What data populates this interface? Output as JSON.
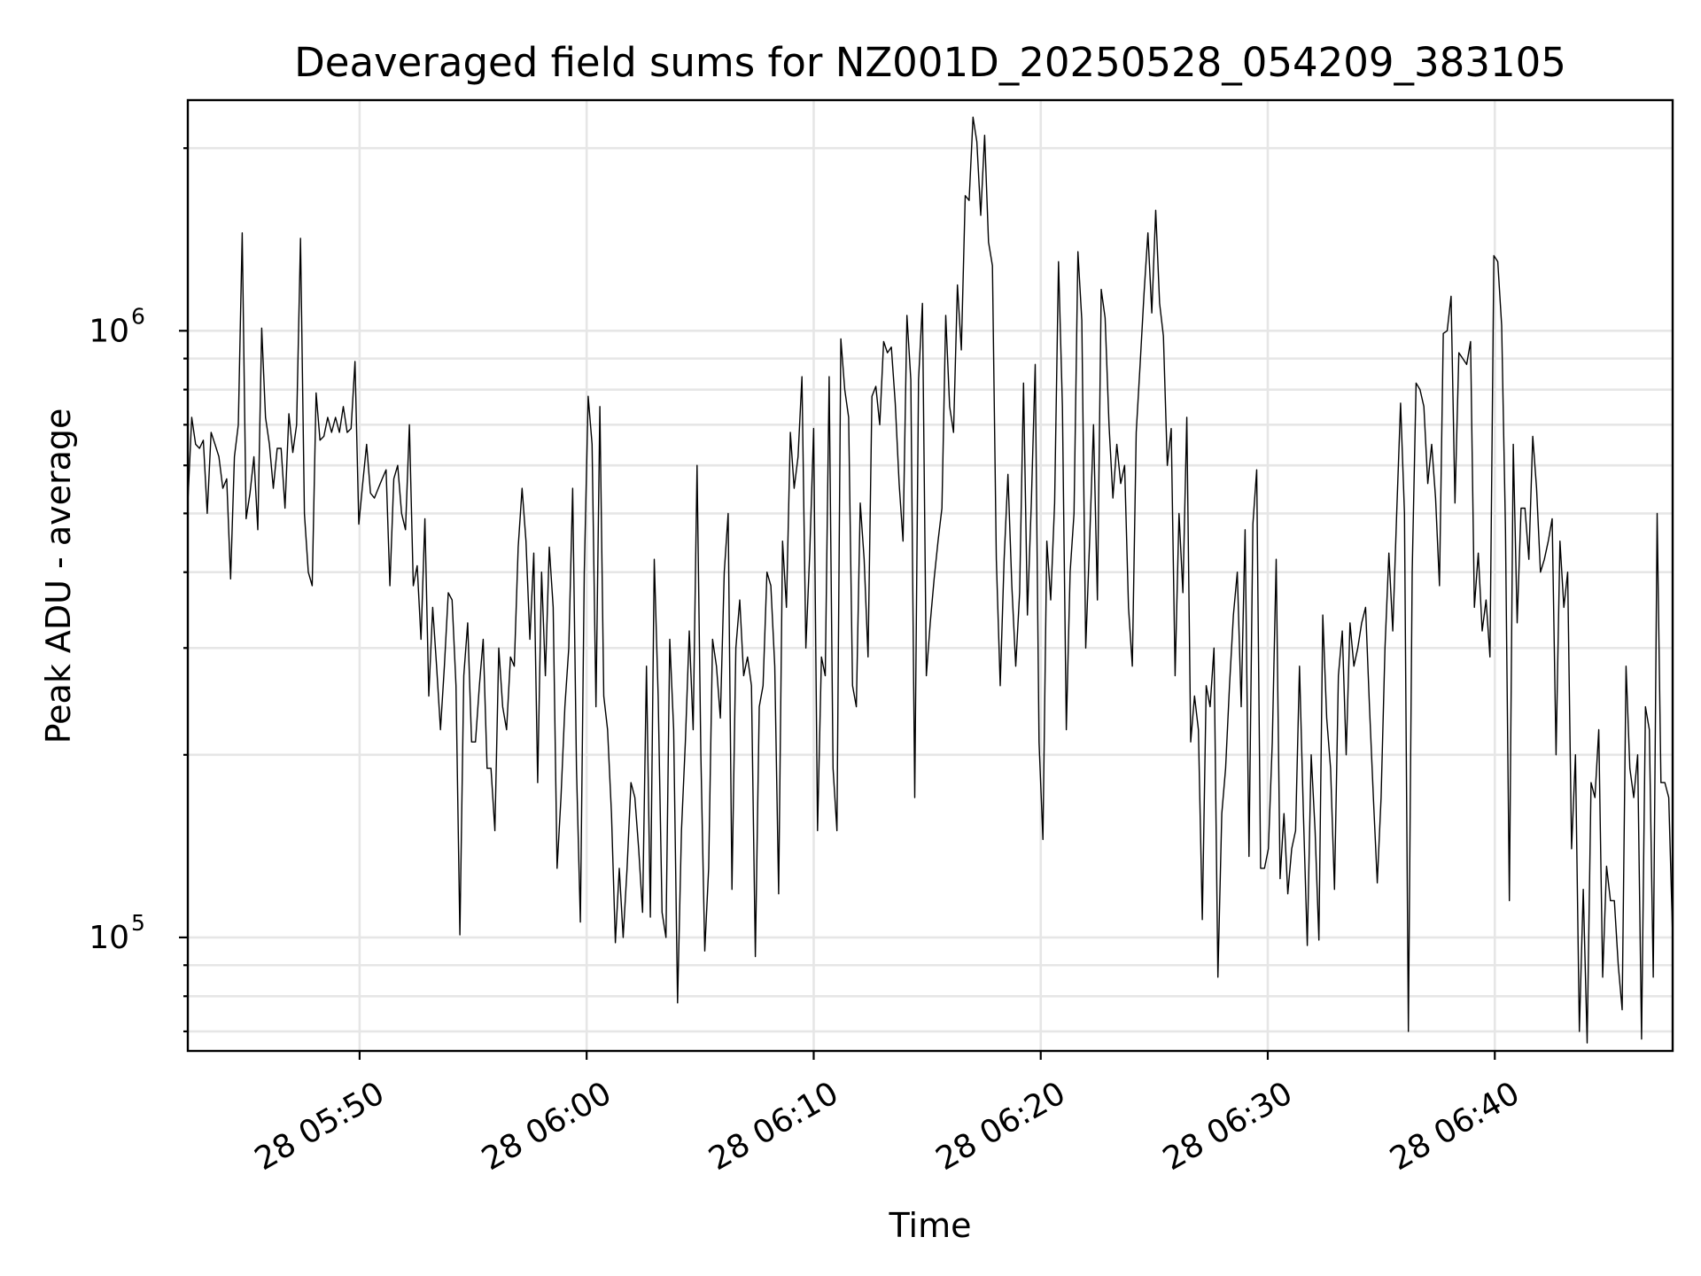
{
  "chart_data": {
    "type": "line",
    "title": "Deaveraged field sums for NZ001D_20250528_054209_383105",
    "xlabel": "Time",
    "ylabel": "Peak ADU - average",
    "yscale": "log",
    "xlim": [
      "2025-05-28T05:42:26",
      "2025-05-28T06:47:50"
    ],
    "ylim": [
      65000,
      2400000
    ],
    "grid": true,
    "x_ticks": [
      {
        "t": "2025-05-28T05:50:00",
        "label": "28 05:50"
      },
      {
        "t": "2025-05-28T06:00:00",
        "label": "28 06:00"
      },
      {
        "t": "2025-05-28T06:10:00",
        "label": "28 06:10"
      },
      {
        "t": "2025-05-28T06:20:00",
        "label": "28 06:20"
      },
      {
        "t": "2025-05-28T06:30:00",
        "label": "28 06:30"
      },
      {
        "t": "2025-05-28T06:40:00",
        "label": "28 06:40"
      }
    ],
    "y_ticks": [
      {
        "value": 100000,
        "base": "10",
        "exp": "5"
      },
      {
        "value": 1000000,
        "base": "10",
        "exp": "6"
      }
    ],
    "series": [
      {
        "color": "#000000",
        "t_start": "2025-05-28T05:42:26",
        "t_end": "2025-05-28T06:47:50",
        "values": [
          520000,
          720000,
          650000,
          640000,
          660000,
          500000,
          680000,
          650000,
          620000,
          550000,
          570000,
          390000,
          620000,
          700000,
          1450000,
          490000,
          540000,
          620000,
          470000,
          1010000,
          720000,
          650000,
          550000,
          640000,
          640000,
          510000,
          730000,
          630000,
          700000,
          1420000,
          500000,
          400000,
          380000,
          790000,
          660000,
          670000,
          720000,
          680000,
          720000,
          680000,
          750000,
          680000,
          690000,
          890000,
          480000,
          560000,
          650000,
          540000,
          530000,
          550000,
          570000,
          590000,
          380000,
          570000,
          600000,
          500000,
          470000,
          700000,
          380000,
          410000,
          310000,
          490000,
          250000,
          350000,
          280000,
          220000,
          280000,
          370000,
          360000,
          260000,
          101000,
          270000,
          330000,
          210000,
          210000,
          260000,
          310000,
          190000,
          190000,
          150000,
          300000,
          240000,
          220000,
          290000,
          280000,
          440000,
          550000,
          450000,
          310000,
          430000,
          180000,
          400000,
          270000,
          440000,
          350000,
          130000,
          170000,
          240000,
          300000,
          550000,
          190000,
          106000,
          400000,
          780000,
          650000,
          240000,
          750000,
          250000,
          220000,
          160000,
          98000,
          130000,
          100000,
          130000,
          180000,
          170000,
          140000,
          110000,
          280000,
          108000,
          420000,
          250000,
          110000,
          100000,
          310000,
          220000,
          78000,
          150000,
          210000,
          320000,
          220000,
          600000,
          200000,
          95000,
          130000,
          310000,
          280000,
          230000,
          400000,
          500000,
          120000,
          300000,
          360000,
          270000,
          290000,
          260000,
          93000,
          240000,
          260000,
          400000,
          380000,
          280000,
          118000,
          450000,
          350000,
          680000,
          550000,
          620000,
          840000,
          300000,
          430000,
          690000,
          150000,
          290000,
          270000,
          840000,
          190000,
          150000,
          970000,
          800000,
          720000,
          260000,
          240000,
          520000,
          420000,
          290000,
          780000,
          810000,
          700000,
          960000,
          920000,
          940000,
          760000,
          560000,
          450000,
          1060000,
          830000,
          170000,
          830000,
          1110000,
          270000,
          330000,
          390000,
          450000,
          510000,
          1060000,
          750000,
          680000,
          1190000,
          930000,
          1670000,
          1640000,
          2250000,
          2050000,
          1550000,
          2100000,
          1400000,
          1280000,
          420000,
          260000,
          420000,
          580000,
          380000,
          280000,
          370000,
          820000,
          340000,
          520000,
          880000,
          210000,
          145000,
          450000,
          360000,
          520000,
          1300000,
          750000,
          220000,
          400000,
          500000,
          1350000,
          1040000,
          300000,
          450000,
          700000,
          360000,
          1170000,
          1050000,
          700000,
          530000,
          650000,
          560000,
          600000,
          350000,
          280000,
          680000,
          880000,
          1150000,
          1450000,
          1070000,
          1580000,
          1110000,
          980000,
          600000,
          690000,
          270000,
          500000,
          370000,
          720000,
          210000,
          250000,
          220000,
          107000,
          260000,
          240000,
          300000,
          86000,
          160000,
          190000,
          260000,
          340000,
          400000,
          240000,
          470000,
          136000,
          480000,
          590000,
          130000,
          130000,
          140000,
          210000,
          420000,
          125000,
          160000,
          118000,
          140000,
          150000,
          280000,
          160000,
          97000,
          200000,
          150000,
          99000,
          340000,
          230000,
          190000,
          120000,
          270000,
          320000,
          200000,
          330000,
          280000,
          300000,
          330000,
          350000,
          240000,
          170000,
          123000,
          170000,
          300000,
          430000,
          320000,
          500000,
          760000,
          500000,
          70000,
          400000,
          820000,
          800000,
          750000,
          560000,
          650000,
          530000,
          380000,
          990000,
          1000000,
          1140000,
          520000,
          920000,
          900000,
          880000,
          960000,
          350000,
          430000,
          320000,
          360000,
          290000,
          1330000,
          1300000,
          1020000,
          470000,
          115000,
          650000,
          330000,
          510000,
          510000,
          420000,
          670000,
          550000,
          400000,
          420000,
          450000,
          490000,
          200000,
          450000,
          350000,
          400000,
          140000,
          200000,
          70000,
          120000,
          67000,
          180000,
          170000,
          220000,
          86000,
          131000,
          115000,
          115000,
          90000,
          76000,
          280000,
          190000,
          170000,
          200000,
          68000,
          240000,
          220000,
          86000,
          500000,
          180000,
          180000,
          170000,
          100000
        ]
      }
    ]
  }
}
